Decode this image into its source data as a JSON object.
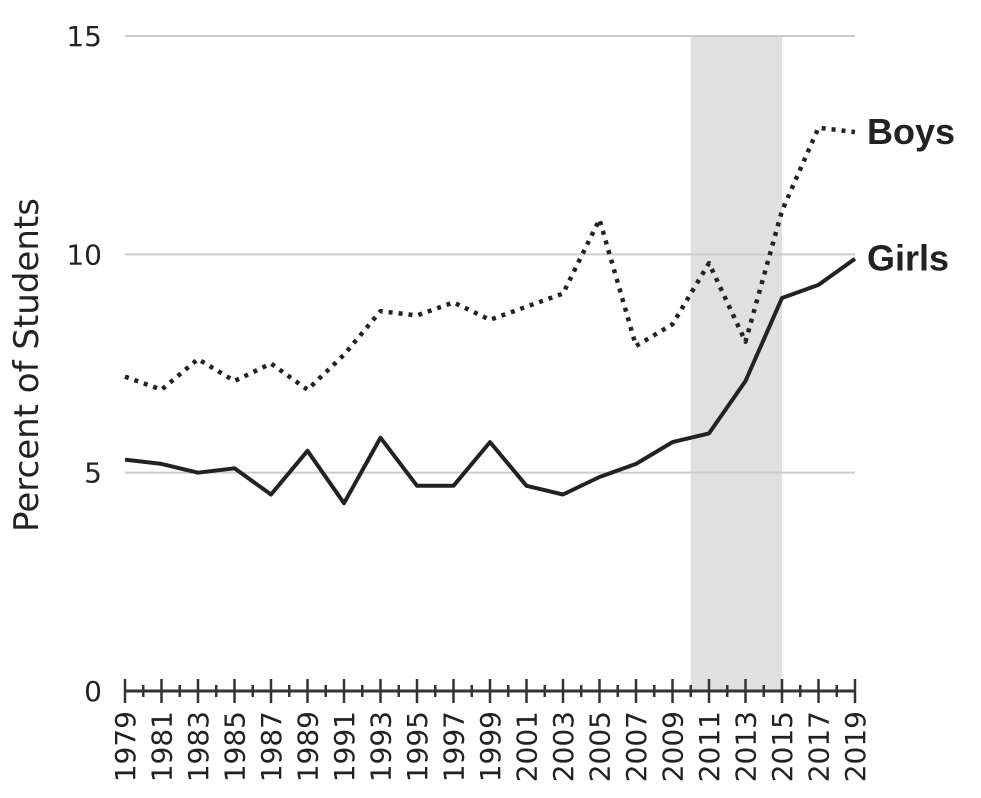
{
  "chart_data": {
    "type": "line",
    "title": "",
    "xlabel": "",
    "ylabel": "Percent of Students",
    "xlim": [
      1979,
      2019
    ],
    "ylim": [
      0,
      15
    ],
    "yticks": [
      0,
      5,
      10,
      15
    ],
    "xtick_labels": [
      "1979",
      "1981",
      "1983",
      "1985",
      "1987",
      "1989",
      "1991",
      "1993",
      "1995",
      "1997",
      "1999",
      "2001",
      "2003",
      "2005",
      "2007",
      "2009",
      "2011",
      "2013",
      "2015",
      "2017",
      "2019"
    ],
    "grid": "horizontal",
    "legend": "series labels at right end of lines",
    "shaded_region": {
      "x_start": 2010,
      "x_end": 2015,
      "color": "#e0e0e0"
    },
    "colors": {
      "line": "#222222",
      "grid": "#cccccc",
      "shade": "#e0e0e0",
      "axis": "#333333"
    },
    "series": [
      {
        "name": "Boys",
        "style": "dotted",
        "points": [
          [
            1979,
            7.2
          ],
          [
            1981,
            6.9
          ],
          [
            1983,
            7.6
          ],
          [
            1985,
            7.1
          ],
          [
            1987,
            7.5
          ],
          [
            1989,
            6.9
          ],
          [
            1991,
            7.7
          ],
          [
            1993,
            8.7
          ],
          [
            1995,
            8.6
          ],
          [
            1997,
            8.9
          ],
          [
            1999,
            8.5
          ],
          [
            2001,
            8.8
          ],
          [
            2003,
            9.1
          ],
          [
            2005,
            10.8
          ],
          [
            2007,
            7.9
          ],
          [
            2009,
            8.4
          ],
          [
            2011,
            9.8
          ],
          [
            2013,
            8.0
          ],
          [
            2015,
            11.0
          ],
          [
            2017,
            12.9
          ],
          [
            2019,
            12.8
          ]
        ]
      },
      {
        "name": "Girls",
        "style": "solid",
        "points": [
          [
            1979,
            5.3
          ],
          [
            1981,
            5.2
          ],
          [
            1983,
            5.0
          ],
          [
            1985,
            5.1
          ],
          [
            1987,
            4.5
          ],
          [
            1989,
            5.5
          ],
          [
            1991,
            4.3
          ],
          [
            1993,
            5.8
          ],
          [
            1995,
            4.7
          ],
          [
            1997,
            4.7
          ],
          [
            1999,
            5.7
          ],
          [
            2001,
            4.7
          ],
          [
            2003,
            4.5
          ],
          [
            2005,
            4.9
          ],
          [
            2007,
            5.2
          ],
          [
            2009,
            5.7
          ],
          [
            2011,
            5.9
          ],
          [
            2013,
            7.1
          ],
          [
            2015,
            9.0
          ],
          [
            2017,
            9.3
          ],
          [
            2019,
            9.9
          ]
        ]
      }
    ]
  }
}
